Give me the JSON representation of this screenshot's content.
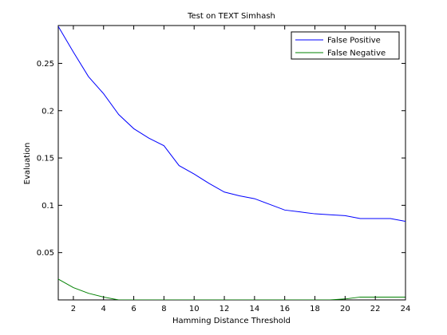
{
  "chart_data": {
    "type": "line",
    "title": "Test on TEXT Simhash",
    "xlabel": "Hamming Distance Threshold",
    "ylabel": "Evaluation",
    "xlim": [
      1,
      24
    ],
    "ylim": [
      0,
      0.29
    ],
    "xticks": [
      2,
      4,
      6,
      8,
      10,
      12,
      14,
      16,
      18,
      20,
      22,
      24
    ],
    "yticks": [
      0.05,
      0.1,
      0.15,
      0.2,
      0.25
    ],
    "ytick_labels": [
      "0.05",
      "0.1",
      "0.15",
      "0.2",
      "0.25"
    ],
    "grid": false,
    "legend_position": "top-right",
    "series": [
      {
        "name": "False Positive",
        "color": "#0000ff",
        "x": [
          1,
          2,
          3,
          4,
          5,
          6,
          7,
          8,
          9,
          10,
          11,
          12,
          13,
          14,
          15,
          16,
          17,
          18,
          19,
          20,
          21,
          22,
          23,
          24
        ],
        "y": [
          0.289,
          0.262,
          0.236,
          0.218,
          0.196,
          0.181,
          0.171,
          0.163,
          0.142,
          0.133,
          0.123,
          0.114,
          0.11,
          0.107,
          0.101,
          0.095,
          0.093,
          0.091,
          0.09,
          0.089,
          0.086,
          0.086,
          0.086,
          0.083
        ]
      },
      {
        "name": "False Negative",
        "color": "#008000",
        "x": [
          1,
          2,
          3,
          4,
          5,
          6,
          7,
          8,
          9,
          10,
          11,
          12,
          13,
          14,
          15,
          16,
          17,
          18,
          19,
          20,
          21,
          22,
          23,
          24
        ],
        "y": [
          0.022,
          0.013,
          0.007,
          0.003,
          0.0,
          0.0,
          0.0,
          0.0,
          0.0,
          0.0,
          0.0,
          0.0,
          0.0,
          0.0,
          0.0,
          0.0,
          0.0,
          0.0,
          0.0,
          0.001,
          0.003,
          0.003,
          0.003,
          0.003
        ]
      }
    ]
  }
}
